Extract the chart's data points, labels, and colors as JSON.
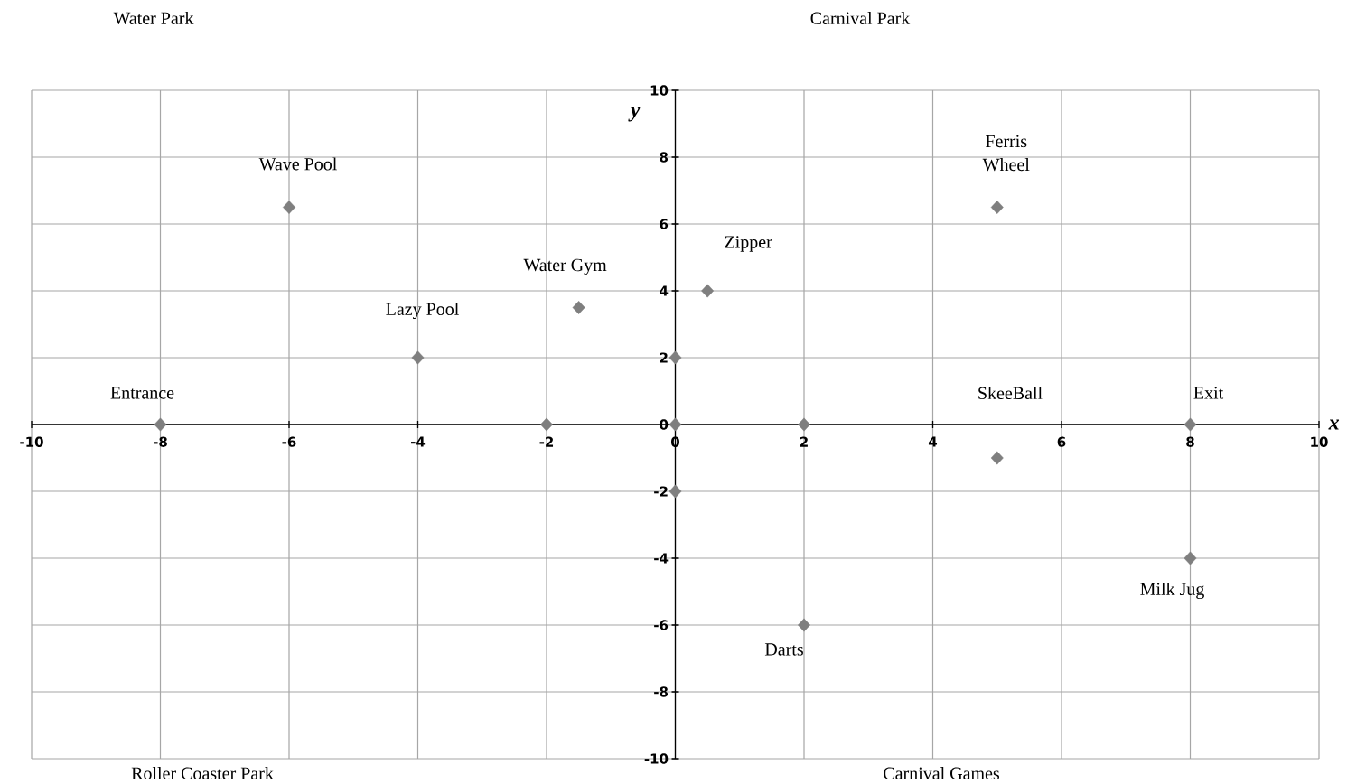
{
  "chart_data": {
    "type": "scatter",
    "xlabel": "x",
    "ylabel": "y",
    "x": [
      -8,
      -6,
      -4,
      -2,
      -1.5,
      0,
      0,
      0,
      0.5,
      2,
      2,
      5,
      5,
      8,
      8
    ],
    "values": [
      0,
      6.5,
      2,
      0,
      3.5,
      2,
      0,
      -2,
      4,
      0,
      -6,
      6.5,
      -1,
      0,
      -4
    ],
    "color": "#7f7f7f",
    "marker": "diamond",
    "grid": true,
    "xlim": [
      -10,
      10
    ],
    "ylim": [
      -10,
      10
    ],
    "xticks": [
      -10,
      -8,
      -6,
      -4,
      -2,
      0,
      2,
      4,
      6,
      8,
      10
    ],
    "yticks": [
      -10,
      -8,
      -6,
      -4,
      -2,
      0,
      2,
      4,
      6,
      8,
      10
    ],
    "annotations": [
      {
        "text": "Entrance",
        "x": -8,
        "y": 0
      },
      {
        "text": "Wave Pool",
        "x": -6,
        "y": 6.5
      },
      {
        "text": "Lazy Pool",
        "x": -4,
        "y": 2
      },
      {
        "text": "Water Gym",
        "x": -1.5,
        "y": 3.5
      },
      {
        "text": "Zipper",
        "x": 0.5,
        "y": 4
      },
      {
        "text": "Ferris Wheel",
        "x": 5,
        "y": 6.5
      },
      {
        "text": "Exit",
        "x": 8,
        "y": 0
      },
      {
        "text": "Milk Jug",
        "x": 8,
        "y": -4
      },
      {
        "text": "Darts",
        "x": 2,
        "y": -6
      },
      "Water Park",
      "Carnival Park",
      "Roller Coaster Park",
      "Carnival Games",
      "SkeeBall"
    ]
  }
}
